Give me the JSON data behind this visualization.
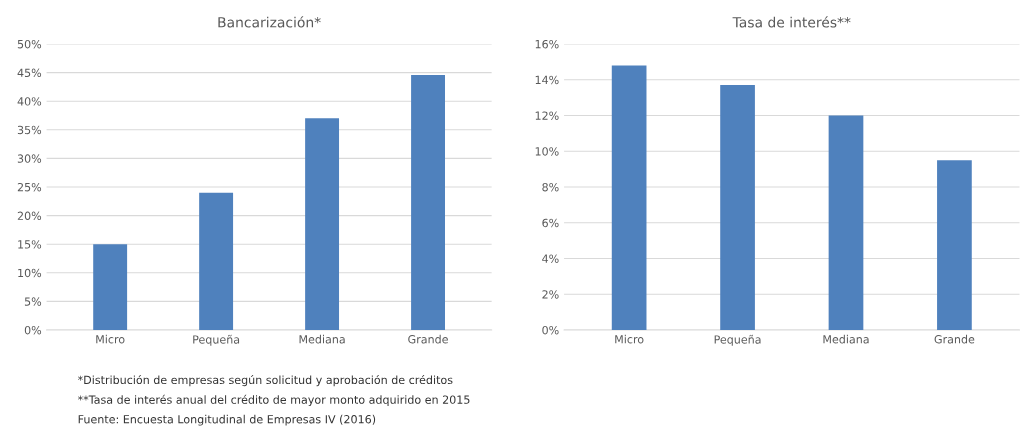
{
  "chart_data": [
    {
      "type": "bar",
      "title": "Bancarización*",
      "categories": [
        "Micro",
        "Pequeña",
        "Mediana",
        "Grande"
      ],
      "color": "#4f81bd",
      "values": [
        15,
        24,
        37,
        44.6
      ],
      "ylim": [
        0,
        50
      ],
      "yticks": [
        {
          "value": 0,
          "label": "0%"
        },
        {
          "value": 5,
          "label": "5%"
        },
        {
          "value": 10,
          "label": "10%"
        },
        {
          "value": 15,
          "label": "15%"
        },
        {
          "value": 20,
          "label": "20%"
        },
        {
          "value": 25,
          "label": "25%"
        },
        {
          "value": 30,
          "label": "30%"
        },
        {
          "value": 35,
          "label": "35%"
        },
        {
          "value": 40,
          "label": "40%"
        },
        {
          "value": 45,
          "label": "45%"
        },
        {
          "value": 50,
          "label": "50%"
        }
      ],
      "grid": "y",
      "annotations": [
        "*Distribución de empresas según solicitud y aprobación de créditos",
        "**Tasa de interés anual del crédito de mayor monto adquirido en 2015",
        "Fuente: Encuesta Longitudinal de Empresas IV (2016)"
      ]
    },
    {
      "type": "bar",
      "title": "Tasa de interés**",
      "categories": [
        "Micro",
        "Pequeña",
        "Mediana",
        "Grande"
      ],
      "color": "#4f81bd",
      "values": [
        14.8,
        13.7,
        12.0,
        9.5
      ],
      "ylim": [
        0,
        16
      ],
      "yticks": [
        {
          "value": 0,
          "label": "0%"
        },
        {
          "value": 2,
          "label": "2%"
        },
        {
          "value": 4,
          "label": "4%"
        },
        {
          "value": 6,
          "label": "6%"
        },
        {
          "value": 8,
          "label": "8%"
        },
        {
          "value": 10,
          "label": "10%"
        },
        {
          "value": 12,
          "label": "12%"
        },
        {
          "value": 14,
          "label": "14%"
        },
        {
          "value": 16,
          "label": "16%"
        }
      ],
      "grid": "y"
    }
  ]
}
